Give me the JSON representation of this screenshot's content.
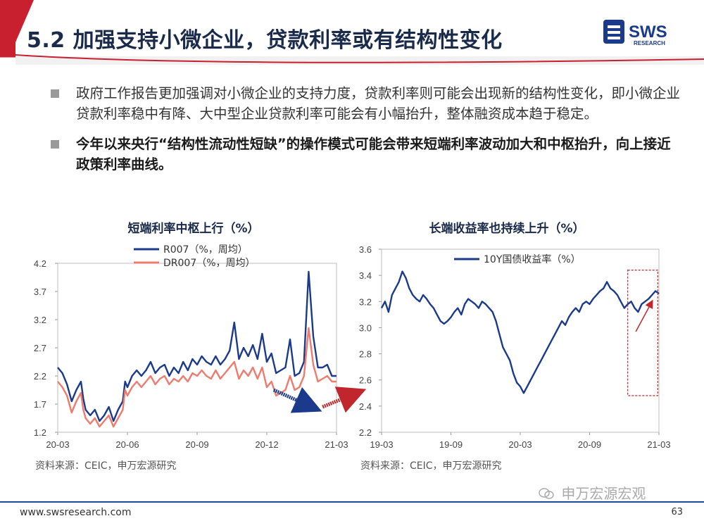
{
  "header": {
    "title": "5.2 加强支持小微企业，贷款利率或有结构性变化",
    "logo_text": "SWS",
    "logo_sub": "RESEARCH"
  },
  "bullets": [
    {
      "text": "政府工作报告更加强调对小微企业的支持力度，贷款利率则可能会出现新的结构性变化，即小微企业贷款利率稳中有降、大中型企业贷款利率可能会有小幅抬升，整体融资成本趋于稳定。",
      "bold": false
    },
    {
      "text": "今年以来央行“结构性流动性短缺”的操作模式可能会带来短端利率波动加大和中枢抬升，向上接近政策利率曲线。",
      "bold": true
    }
  ],
  "colors": {
    "header_red": "#c8202f",
    "navy": "#1b3a8c",
    "salmon": "#f07a6e",
    "red_arrow": "#c0262c"
  },
  "chart_data": [
    {
      "type": "line",
      "title": "短端利率中枢上行（%）",
      "xticks": [
        "20-03",
        "20-06",
        "20-09",
        "20-12",
        "21-03"
      ],
      "yticks": [
        "1.2",
        "1.7",
        "2.2",
        "2.7",
        "3.2",
        "3.7",
        "4.2"
      ],
      "ylim": [
        1.2,
        4.2
      ],
      "x_months": [
        0,
        3,
        6,
        9,
        12
      ],
      "grid": false,
      "legend_position": "top-left",
      "series": [
        {
          "name": "R007（%，周均）",
          "color": "#1b3a8c",
          "x": [
            0,
            0.2,
            0.4,
            0.6,
            0.8,
            1.0,
            1.1,
            1.2,
            1.4,
            1.6,
            1.8,
            2.0,
            2.2,
            2.4,
            2.6,
            2.8,
            2.9,
            3.0,
            3.2,
            3.4,
            3.6,
            3.8,
            4.0,
            4.2,
            4.4,
            4.6,
            4.8,
            5.0,
            5.2,
            5.4,
            5.6,
            5.8,
            6.0,
            6.2,
            6.4,
            6.6,
            6.8,
            7.0,
            7.2,
            7.4,
            7.6,
            7.8,
            8.0,
            8.2,
            8.4,
            8.6,
            8.8,
            9.0,
            9.2,
            9.4,
            9.6,
            9.8,
            10.0,
            10.2,
            10.4,
            10.6,
            10.8,
            11.0,
            11.2,
            11.4,
            11.6,
            11.8,
            12.0
          ],
          "values": [
            2.35,
            2.25,
            2.05,
            1.75,
            1.95,
            2.1,
            1.8,
            1.6,
            1.5,
            1.6,
            1.4,
            1.5,
            1.65,
            1.4,
            1.6,
            1.75,
            2.1,
            2.0,
            2.2,
            2.3,
            2.2,
            2.3,
            2.45,
            2.25,
            2.35,
            2.4,
            2.2,
            2.35,
            2.25,
            2.45,
            2.3,
            2.5,
            2.4,
            2.55,
            2.45,
            2.4,
            2.55,
            2.4,
            2.5,
            2.65,
            3.15,
            2.5,
            2.7,
            2.55,
            2.75,
            2.5,
            2.95,
            2.45,
            2.6,
            2.25,
            2.3,
            2.35,
            2.85,
            2.2,
            2.25,
            2.45,
            4.05,
            2.9,
            2.35,
            2.35,
            2.4,
            2.2,
            2.2
          ]
        },
        {
          "name": "DR007（%，周均）",
          "color": "#f07a6e",
          "x": [
            0,
            0.2,
            0.4,
            0.6,
            0.8,
            1.0,
            1.1,
            1.2,
            1.4,
            1.6,
            1.8,
            2.0,
            2.2,
            2.4,
            2.6,
            2.8,
            2.9,
            3.0,
            3.2,
            3.4,
            3.6,
            3.8,
            4.0,
            4.2,
            4.4,
            4.6,
            4.8,
            5.0,
            5.2,
            5.4,
            5.6,
            5.8,
            6.0,
            6.2,
            6.4,
            6.6,
            6.8,
            7.0,
            7.2,
            7.4,
            7.6,
            7.8,
            8.0,
            8.2,
            8.4,
            8.6,
            8.8,
            9.0,
            9.2,
            9.4,
            9.6,
            9.8,
            10.0,
            10.2,
            10.4,
            10.6,
            10.8,
            11.0,
            11.2,
            11.4,
            11.6,
            11.8,
            12.0
          ],
          "values": [
            2.1,
            2.0,
            1.85,
            1.55,
            1.75,
            1.9,
            1.6,
            1.45,
            1.35,
            1.45,
            1.3,
            1.4,
            1.5,
            1.3,
            1.45,
            1.6,
            1.95,
            1.85,
            2.0,
            2.1,
            2.0,
            2.1,
            2.2,
            2.05,
            2.15,
            2.2,
            2.05,
            2.15,
            2.1,
            2.2,
            2.1,
            2.25,
            2.2,
            2.3,
            2.2,
            2.15,
            2.3,
            2.15,
            2.25,
            2.35,
            2.45,
            2.15,
            2.3,
            2.2,
            2.35,
            2.15,
            2.35,
            2.0,
            2.1,
            1.85,
            1.9,
            1.95,
            2.2,
            1.95,
            2.0,
            2.2,
            3.05,
            2.4,
            2.1,
            2.15,
            2.2,
            2.1,
            2.1
          ]
        }
      ]
    },
    {
      "type": "line",
      "title": "长端收益率也持续上升（%）",
      "xticks": [
        "19-03",
        "19-09",
        "20-03",
        "20-09",
        "21-03"
      ],
      "yticks": [
        "2.2",
        "2.4",
        "2.6",
        "2.8",
        "3.0",
        "3.2",
        "3.4",
        "3.6"
      ],
      "ylim": [
        2.2,
        3.6
      ],
      "x_months": [
        0,
        6,
        12,
        18,
        24
      ],
      "grid": false,
      "legend_position": "top-left",
      "series": [
        {
          "name": "10Y国债收益率（%）",
          "color": "#1b3a8c",
          "x": [
            0,
            0.3,
            0.6,
            0.9,
            1.2,
            1.5,
            1.8,
            2.1,
            2.4,
            2.7,
            3.0,
            3.3,
            3.6,
            3.9,
            4.2,
            4.5,
            4.8,
            5.1,
            5.4,
            5.7,
            6.0,
            6.3,
            6.6,
            6.9,
            7.2,
            7.5,
            7.8,
            8.1,
            8.4,
            8.7,
            9.0,
            9.3,
            9.6,
            9.9,
            10.2,
            10.5,
            10.8,
            11.1,
            11.4,
            11.7,
            12.0,
            12.3,
            12.6,
            12.9,
            13.2,
            13.5,
            13.8,
            14.1,
            14.4,
            14.7,
            15.0,
            15.3,
            15.6,
            15.9,
            16.2,
            16.5,
            16.8,
            17.1,
            17.4,
            17.7,
            18.0,
            18.3,
            18.6,
            18.9,
            19.2,
            19.5,
            19.8,
            20.1,
            20.4,
            20.7,
            21.0,
            21.3,
            21.6,
            21.9,
            22.2,
            22.5,
            22.8,
            23.1,
            23.4,
            23.7,
            24.0
          ],
          "values": [
            3.15,
            3.2,
            3.12,
            3.25,
            3.3,
            3.35,
            3.43,
            3.38,
            3.3,
            3.25,
            3.22,
            3.2,
            3.25,
            3.22,
            3.18,
            3.15,
            3.1,
            3.05,
            3.03,
            3.05,
            3.08,
            3.12,
            3.15,
            3.1,
            3.18,
            3.22,
            3.2,
            3.18,
            3.15,
            3.2,
            3.18,
            3.15,
            3.12,
            3.05,
            2.95,
            2.85,
            2.8,
            2.75,
            2.65,
            2.58,
            2.55,
            2.5,
            2.55,
            2.6,
            2.65,
            2.7,
            2.75,
            2.8,
            2.85,
            2.9,
            2.95,
            3.0,
            3.05,
            3.02,
            3.08,
            3.12,
            3.15,
            3.12,
            3.18,
            3.2,
            3.18,
            3.22,
            3.25,
            3.28,
            3.3,
            3.35,
            3.3,
            3.28,
            3.25,
            3.2,
            3.15,
            3.18,
            3.2,
            3.15,
            3.12,
            3.18,
            3.2,
            3.22,
            3.25,
            3.28,
            3.26
          ]
        }
      ]
    }
  ],
  "sources": [
    "资料来源：CEIC，申万宏源研究",
    "资料来源：CEIC，申万宏源研究"
  ],
  "watermark": "申万宏源宏观",
  "footer": {
    "url": "www.swsresearch.com",
    "page": "63"
  }
}
